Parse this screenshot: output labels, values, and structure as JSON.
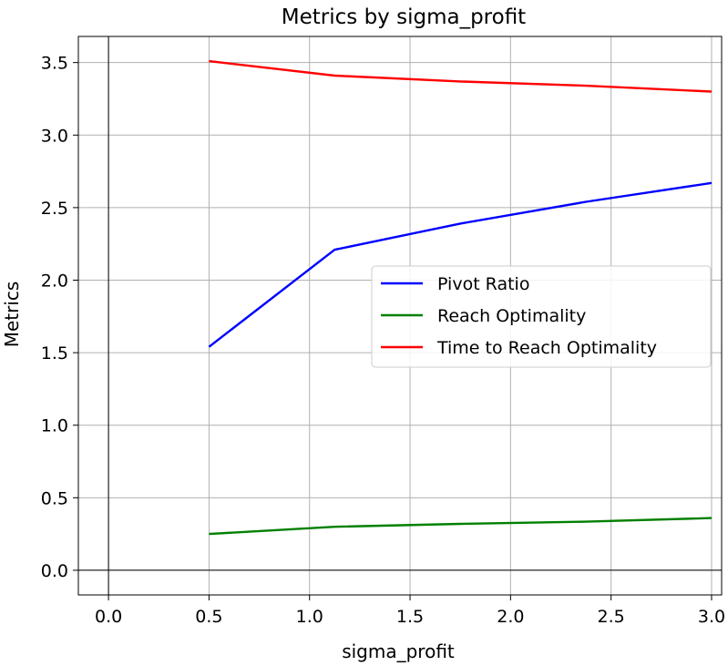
{
  "chart_data": {
    "type": "line",
    "title": "Metrics by sigma_profit",
    "xlabel": "sigma_profit",
    "ylabel": "Metrics",
    "xlim": [
      -0.15,
      3.05
    ],
    "ylim": [
      -0.17,
      3.68
    ],
    "xticks": [
      "0.0",
      "0.5",
      "1.0",
      "1.5",
      "2.0",
      "2.5",
      "3.0"
    ],
    "yticks": [
      "0.0",
      "0.5",
      "1.0",
      "1.5",
      "2.0",
      "2.5",
      "3.0",
      "3.5"
    ],
    "grid": true,
    "zero_lines": true,
    "legend_position": "center-right",
    "x": [
      0.5,
      1.125,
      1.75,
      2.375,
      3.0
    ],
    "series": [
      {
        "name": "Pivot Ratio",
        "color": "#0000ff",
        "values": [
          1.54,
          2.21,
          2.39,
          2.54,
          2.67
        ]
      },
      {
        "name": "Reach Optimality",
        "color": "#008000",
        "values": [
          0.25,
          0.3,
          0.32,
          0.335,
          0.36
        ]
      },
      {
        "name": "Time to Reach Optimality",
        "color": "#ff0000",
        "values": [
          3.51,
          3.41,
          3.37,
          3.34,
          3.3
        ]
      }
    ]
  }
}
